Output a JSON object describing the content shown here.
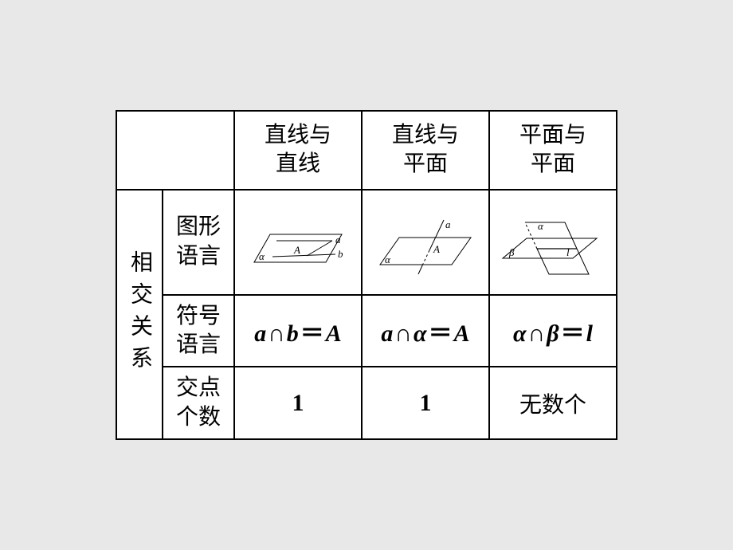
{
  "table": {
    "headers": {
      "col1": "直线与\n直线",
      "col2": "直线与\n平面",
      "col3": "平面与\n平面"
    },
    "rowgroup_label": "相交关系",
    "rows": {
      "diagram_label": "图形\n语言",
      "symbol_label": "符号\n语言",
      "count_label": "交点\n个数",
      "symbol": {
        "c1_a": "a",
        "c1_op1": "∩",
        "c1_b": "b",
        "c1_eq": "＝",
        "c1_r": "A",
        "c2_a": "a",
        "c2_op1": "∩",
        "c2_b": "α",
        "c2_eq": "＝",
        "c2_r": "A",
        "c3_a": "α",
        "c3_op1": "∩",
        "c3_b": "β",
        "c3_eq": "＝",
        "c3_r": "l"
      },
      "count": {
        "c1": "1",
        "c2": "1",
        "c3": "无数个"
      }
    },
    "diagrams": {
      "line_line": {
        "alpha": "α",
        "A": "A",
        "a": "a",
        "b": "b"
      },
      "line_plane": {
        "alpha": "α",
        "A": "A",
        "a": "a"
      },
      "plane_plane": {
        "alpha": "α",
        "beta": "β",
        "l": "l"
      }
    }
  },
  "style": {
    "border": "#000000",
    "bg": "#ffffff",
    "page_bg": "#e8e8e8",
    "col_rowhdr1_w": 58,
    "col_rowhdr2_w": 90,
    "col_data_w": 160,
    "hdr_h": 86
  }
}
